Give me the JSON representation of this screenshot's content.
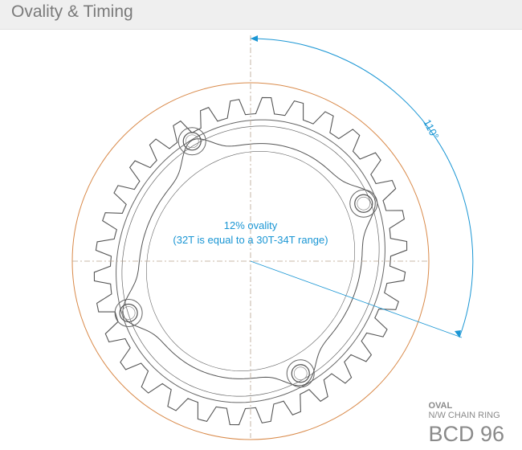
{
  "header": {
    "title": "Ovality & Timing"
  },
  "annotations": {
    "angle": "110°",
    "ovality": "12% ovality",
    "note": "(32T is equal to a 30T-34T range)"
  },
  "product": {
    "type": "OVAL",
    "name": "N/W CHAIN RING",
    "bcd": "BCD 96"
  }
}
